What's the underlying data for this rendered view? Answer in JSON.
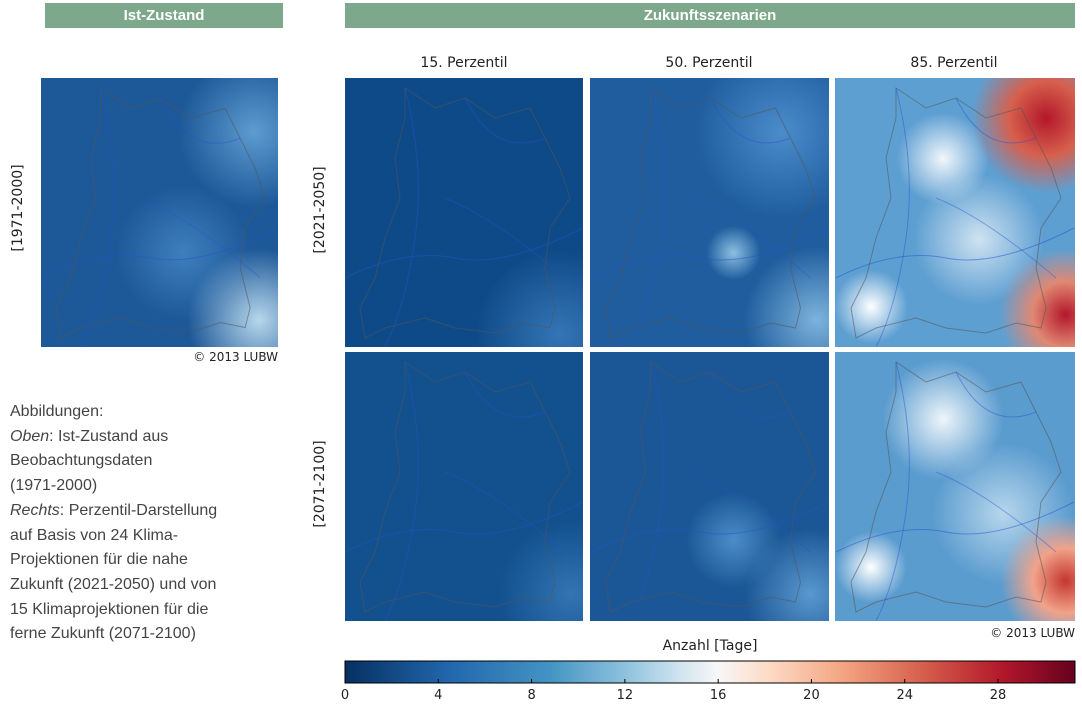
{
  "header": {
    "current": "Ist-Zustand",
    "scenarios": "Zukunftsszenarien"
  },
  "current_map": {
    "period": "[1971-2000]",
    "credit": "© 2013 LUBW"
  },
  "columns": [
    "15. Perzentil",
    "50. Perzentil",
    "85. Perzentil"
  ],
  "rows": [
    "[2021-2050]",
    "[2071-2100]"
  ],
  "scenario_credit": "© 2013 LUBW",
  "colorbar": {
    "label": "Anzahl [Tage]",
    "lim": [
      0,
      31.3
    ],
    "ticks": [
      0,
      4,
      8,
      12,
      16,
      20,
      24,
      28
    ]
  },
  "description": [
    {
      "text": "Abbildungen:"
    },
    {
      "em": "Oben",
      "text": ": Ist-Zustand aus"
    },
    {
      "text": "Beobachtungsdaten"
    },
    {
      "text": "(1971-2000)"
    },
    {
      "em": "Rechts",
      "text": ": Perzentil-Darstellung"
    },
    {
      "text": "auf Basis von 24 Klima-"
    },
    {
      "text": "Projektionen für die nahe"
    },
    {
      "text": "Zukunft (2021-2050) und von"
    },
    {
      "text": "15 Klimaprojektionen für die"
    },
    {
      "text": "ferne Zukunft (2071-2100)"
    }
  ]
}
